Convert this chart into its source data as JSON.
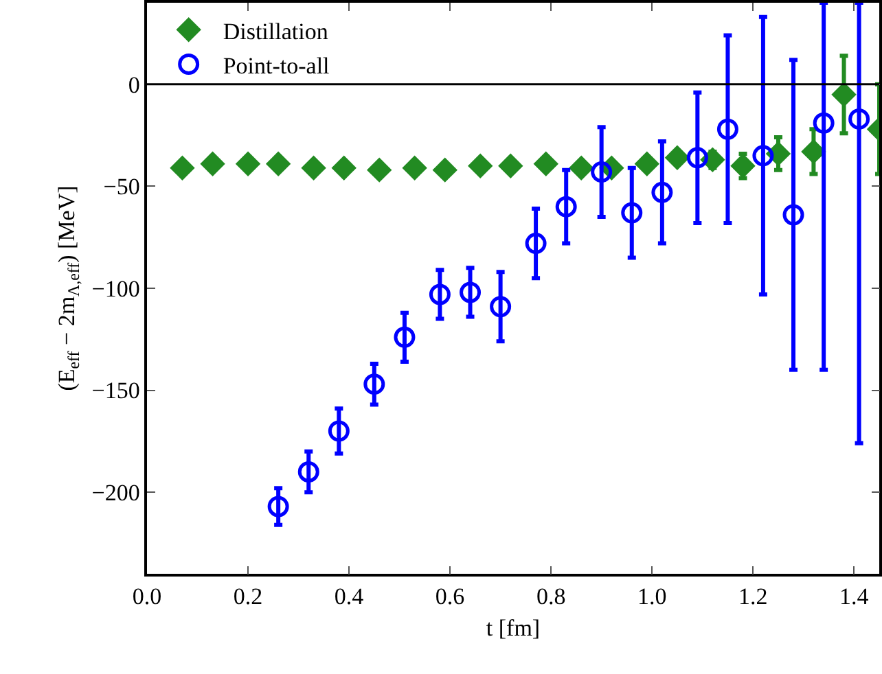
{
  "chart_data": {
    "type": "scatter",
    "xlabel": "t [fm]",
    "ylabel": "(E$_{eff}$ − 2m$_{Λ,eff}$) [MeV]",
    "xlim": [
      0,
      1.45
    ],
    "xticks": [
      {
        "value": 0,
        "label": "0.0"
      },
      0.2,
      0.4,
      0.6,
      0.8,
      {
        "value": 1,
        "label": "1.0"
      },
      1.2,
      1.4
    ],
    "ylim": [
      -240,
      40
    ],
    "yticks": [
      -200,
      -150,
      -100,
      -50,
      0
    ],
    "grid": false,
    "legend": "top left",
    "ref_lines": [
      {
        "axis": "y",
        "value": 0,
        "color": "#000000"
      }
    ],
    "series": [
      {
        "name": "Distillation",
        "color": "#228b22",
        "marker": "diamond",
        "x": [
          0.07,
          0.13,
          0.2,
          0.26,
          0.33,
          0.39,
          0.46,
          0.53,
          0.59,
          0.66,
          0.72,
          0.79,
          0.86,
          0.92,
          0.99,
          1.05,
          1.12,
          1.18,
          1.25,
          1.32,
          1.38,
          1.45
        ],
        "values": [
          -41,
          -39,
          -39,
          -39,
          -41,
          -41,
          -42,
          -41,
          -42,
          -40,
          -40,
          -39,
          -41,
          -41,
          -39,
          -36,
          -37,
          -40,
          -34,
          -33,
          -5,
          -22
        ],
        "errors": [
          null,
          null,
          null,
          null,
          null,
          null,
          null,
          null,
          null,
          null,
          null,
          null,
          null,
          null,
          null,
          null,
          4,
          6,
          8,
          11,
          19,
          22
        ]
      },
      {
        "name": "Point-to-all",
        "color": "#0000ff",
        "marker": "circle-open",
        "x": [
          0.26,
          0.32,
          0.38,
          0.45,
          0.51,
          0.58,
          0.64,
          0.7,
          0.77,
          0.83,
          0.9,
          0.96,
          1.02,
          1.09,
          1.15,
          1.22,
          1.28,
          1.34,
          1.41
        ],
        "values": [
          -207,
          -190,
          -170,
          -147,
          -124,
          -103,
          -102,
          -109,
          -78,
          -60,
          -43,
          -63,
          -53,
          -36,
          -22,
          -35,
          -64,
          -19,
          -17
        ],
        "errors": [
          9,
          10,
          11,
          10,
          12,
          12,
          12,
          17,
          17,
          18,
          22,
          22,
          25,
          32,
          46,
          68,
          76,
          [
            -140,
            40
          ],
          [
            -176,
            40
          ]
        ]
      }
    ]
  }
}
